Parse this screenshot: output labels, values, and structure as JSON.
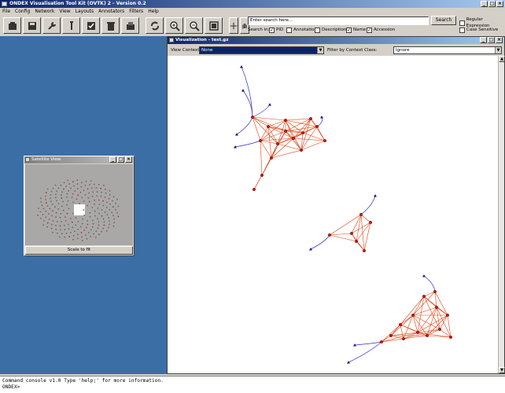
{
  "window": {
    "title": "ONDEX Visualisation Tool Kit (OVTK) 2 - Version 0.2"
  },
  "menu": [
    "File",
    "Config",
    "Network",
    "View",
    "Layouts",
    "Annotators",
    "Filters",
    "Help"
  ],
  "toolbar": {
    "icons": [
      "new-icon",
      "save-icon",
      "wrench-icon",
      "edit-icon",
      "checkbox-icon",
      "trash-icon",
      "export-icon",
      "refresh-icon",
      "zoom-in-icon",
      "zoom-out-icon",
      "fit-icon",
      "move-icon",
      "hand-icon"
    ]
  },
  "search": {
    "placeholder": "Enter search here...",
    "button": "Search",
    "search_in_label": "Search in:",
    "options": [
      {
        "label": "PID",
        "checked": true
      },
      {
        "label": "Annotation",
        "checked": false
      },
      {
        "label": "Description",
        "checked": false
      },
      {
        "label": "Name",
        "checked": true
      },
      {
        "label": "Accession",
        "checked": true
      }
    ],
    "regular_expression": {
      "label": "Regular Expression",
      "checked": false
    },
    "case_sensitive": {
      "label": "Case Sensitive",
      "checked": false
    }
  },
  "satellite": {
    "title": "Satellite View",
    "button": "Scale to fit"
  },
  "visualization": {
    "title": "Visualization - test.gz",
    "view_context_label": "View Context:",
    "view_context_value": "None",
    "filter_label": "Filter by Context Class:",
    "filter_value": "Ignore"
  },
  "console": {
    "line1": "Command console v1.0 Type 'help;' for more information.",
    "prompt": "ONDEX>"
  },
  "colors": {
    "edge_red": "#e04010",
    "edge_blue": "#3030c0",
    "node_red": "#c01818",
    "node_blue": "#1a1a80",
    "desktop": "#3a6ea5"
  }
}
